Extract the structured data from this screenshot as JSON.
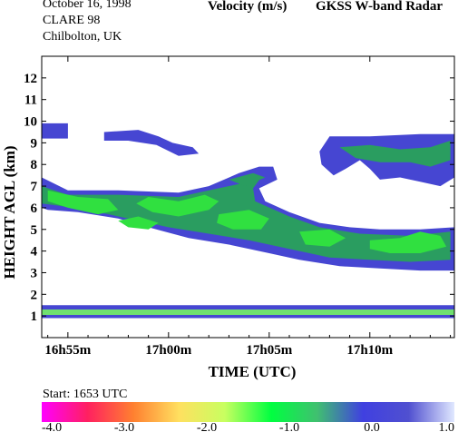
{
  "header": {
    "date": "October  16, 1998",
    "campaign": "CLARE 98",
    "location": "Chilbolton, UK",
    "variable": "Velocity (m/s)",
    "instrument": "GKSS  W-band Radar",
    "start": "Start: 1653 UTC"
  },
  "chart_data": {
    "type": "heatmap",
    "xlabel": "TIME (UTC)",
    "ylabel": "HEIGHT AGL (km)",
    "x_range_min": [
      53.7,
      74.2
    ],
    "y_range_km": [
      0.0,
      13.0
    ],
    "x_ticks": [
      {
        "label": "16h55m",
        "min": 55
      },
      {
        "label": "17h00m",
        "min": 60
      },
      {
        "label": "17h05m",
        "min": 65
      },
      {
        "label": "17h10m",
        "min": 70
      }
    ],
    "y_ticks": [
      1,
      2,
      3,
      4,
      5,
      6,
      7,
      8,
      9,
      10,
      11,
      12
    ],
    "colorbar": {
      "range": [
        -4.0,
        1.0
      ],
      "labels": [
        "-4.0",
        "-3.0",
        "-2.0",
        "-1.0",
        "0.0",
        "1.0"
      ],
      "colors": [
        "#ff00ff",
        "#ff2060",
        "#ff8030",
        "#ffe060",
        "#c8ff60",
        "#00ff40",
        "#40c070",
        "#4040e0",
        "#5050d0",
        "#e0e8ff"
      ]
    },
    "colors": {
      "weak": "#4646d2",
      "moderate": "#2a9d60",
      "strong": "#30e040",
      "mixed": "#70e070"
    },
    "layers": [
      {
        "level": "weak",
        "points": [
          [
            53.7,
            9.9
          ],
          [
            55.0,
            9.9
          ],
          [
            55.0,
            9.2
          ],
          [
            53.7,
            9.2
          ]
        ]
      },
      {
        "level": "weak",
        "points": [
          [
            56.8,
            9.5
          ],
          [
            58.5,
            9.6
          ],
          [
            59.5,
            9.3
          ],
          [
            60.2,
            9.0
          ],
          [
            61.2,
            8.8
          ],
          [
            61.5,
            8.5
          ],
          [
            60.5,
            8.4
          ],
          [
            59.4,
            8.9
          ],
          [
            58.0,
            9.1
          ],
          [
            56.8,
            9.1
          ]
        ]
      },
      {
        "level": "weak",
        "points": [
          [
            67.5,
            8.6
          ],
          [
            68.0,
            9.3
          ],
          [
            70.0,
            9.3
          ],
          [
            72.5,
            9.4
          ],
          [
            74.2,
            9.4
          ],
          [
            74.2,
            7.4
          ],
          [
            73.5,
            7.0
          ],
          [
            72.5,
            7.2
          ],
          [
            71.5,
            7.4
          ],
          [
            70.5,
            7.3
          ],
          [
            70.0,
            7.8
          ],
          [
            69.5,
            8.2
          ],
          [
            68.8,
            7.8
          ],
          [
            68.2,
            7.5
          ],
          [
            67.6,
            8.0
          ]
        ]
      },
      {
        "level": "weak",
        "points": [
          [
            53.7,
            7.4
          ],
          [
            55.0,
            6.8
          ],
          [
            57.5,
            6.8
          ],
          [
            60.5,
            6.7
          ],
          [
            62.0,
            7.0
          ],
          [
            63.5,
            7.6
          ],
          [
            64.5,
            7.9
          ],
          [
            65.2,
            7.9
          ],
          [
            65.4,
            7.3
          ],
          [
            64.5,
            6.9
          ],
          [
            64.8,
            6.3
          ],
          [
            66.0,
            5.8
          ],
          [
            67.5,
            5.3
          ],
          [
            69.0,
            5.1
          ],
          [
            70.5,
            5.0
          ],
          [
            72.5,
            5.0
          ],
          [
            74.2,
            5.1
          ],
          [
            74.2,
            3.1
          ],
          [
            72.5,
            3.1
          ],
          [
            70.5,
            3.2
          ],
          [
            68.5,
            3.3
          ],
          [
            66.5,
            3.6
          ],
          [
            65.0,
            3.9
          ],
          [
            63.0,
            4.3
          ],
          [
            61.0,
            4.6
          ],
          [
            59.0,
            5.1
          ],
          [
            57.5,
            5.5
          ],
          [
            55.5,
            5.8
          ],
          [
            54.0,
            5.9
          ],
          [
            53.7,
            6.0
          ]
        ]
      },
      {
        "level": "moderate",
        "points": [
          [
            53.7,
            7.0
          ],
          [
            55.0,
            6.6
          ],
          [
            57.5,
            6.6
          ],
          [
            60.5,
            6.5
          ],
          [
            62.0,
            6.8
          ],
          [
            63.5,
            7.1
          ],
          [
            64.6,
            7.4
          ],
          [
            64.2,
            6.9
          ],
          [
            64.3,
            6.3
          ],
          [
            66.0,
            5.6
          ],
          [
            67.5,
            5.1
          ],
          [
            69.5,
            4.8
          ],
          [
            72.0,
            4.7
          ],
          [
            74.0,
            4.9
          ],
          [
            74.0,
            3.6
          ],
          [
            72.0,
            3.5
          ],
          [
            70.0,
            3.6
          ],
          [
            68.0,
            3.7
          ],
          [
            66.0,
            4.1
          ],
          [
            64.0,
            4.5
          ],
          [
            62.0,
            4.8
          ],
          [
            60.0,
            5.1
          ],
          [
            58.0,
            5.5
          ],
          [
            56.0,
            5.9
          ],
          [
            54.5,
            6.1
          ],
          [
            53.7,
            6.2
          ]
        ]
      },
      {
        "level": "strong",
        "points": [
          [
            54.0,
            6.8
          ],
          [
            55.5,
            6.5
          ],
          [
            57.0,
            6.4
          ],
          [
            57.5,
            5.9
          ],
          [
            56.5,
            5.7
          ],
          [
            55.0,
            6.0
          ],
          [
            54.0,
            6.3
          ]
        ]
      },
      {
        "level": "strong",
        "points": [
          [
            59.0,
            6.5
          ],
          [
            60.5,
            6.3
          ],
          [
            61.8,
            6.6
          ],
          [
            62.5,
            6.3
          ],
          [
            62.0,
            5.9
          ],
          [
            60.5,
            5.6
          ],
          [
            59.2,
            5.8
          ],
          [
            58.4,
            6.2
          ]
        ]
      },
      {
        "level": "strong",
        "points": [
          [
            57.5,
            5.4
          ],
          [
            58.5,
            5.6
          ],
          [
            59.5,
            5.3
          ],
          [
            59.0,
            5.0
          ],
          [
            58.0,
            5.1
          ]
        ]
      },
      {
        "level": "strong",
        "points": [
          [
            62.5,
            5.7
          ],
          [
            64.0,
            5.9
          ],
          [
            65.0,
            5.5
          ],
          [
            64.6,
            5.0
          ],
          [
            63.2,
            5.0
          ],
          [
            62.4,
            5.3
          ]
        ]
      },
      {
        "level": "strong",
        "points": [
          [
            66.5,
            4.9
          ],
          [
            68.0,
            5.0
          ],
          [
            68.8,
            4.6
          ],
          [
            68.0,
            4.2
          ],
          [
            66.8,
            4.3
          ]
        ]
      },
      {
        "level": "strong",
        "points": [
          [
            70.0,
            4.5
          ],
          [
            71.5,
            4.6
          ],
          [
            72.5,
            4.9
          ],
          [
            73.5,
            4.7
          ],
          [
            73.8,
            4.2
          ],
          [
            72.5,
            3.9
          ],
          [
            71.0,
            3.9
          ],
          [
            70.0,
            4.1
          ]
        ]
      },
      {
        "level": "moderate",
        "points": [
          [
            68.5,
            8.8
          ],
          [
            70.0,
            8.9
          ],
          [
            71.5,
            8.7
          ],
          [
            73.0,
            8.8
          ],
          [
            74.0,
            9.1
          ],
          [
            74.0,
            8.2
          ],
          [
            73.0,
            7.9
          ],
          [
            72.0,
            8.1
          ],
          [
            70.5,
            8.1
          ],
          [
            69.3,
            8.3
          ]
        ]
      },
      {
        "level": "moderate",
        "points": [
          [
            63.0,
            7.3
          ],
          [
            64.2,
            7.6
          ],
          [
            64.8,
            7.4
          ],
          [
            63.8,
            7.0
          ]
        ]
      },
      {
        "level": "weak",
        "points": [
          [
            53.7,
            1.5
          ],
          [
            74.2,
            1.5
          ],
          [
            74.2,
            0.9
          ],
          [
            53.7,
            0.9
          ]
        ]
      },
      {
        "level": "mixed",
        "points": [
          [
            53.7,
            1.3
          ],
          [
            74.2,
            1.3
          ],
          [
            74.2,
            1.05
          ],
          [
            53.7,
            1.05
          ]
        ]
      }
    ]
  }
}
